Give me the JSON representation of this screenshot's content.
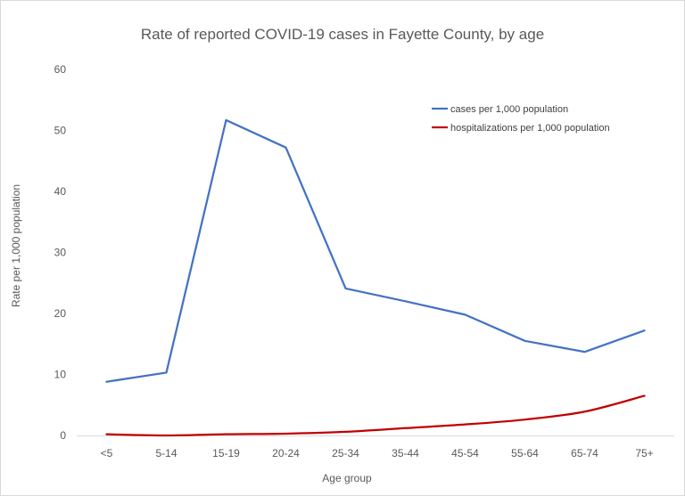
{
  "chart_data": {
    "type": "line",
    "title": "Rate of reported COVID-19 cases in Fayette County, by age",
    "xlabel": "Age group",
    "ylabel": "Rate per 1,000 population",
    "categories": [
      "<5",
      "5-14",
      "15-19",
      "20-24",
      "25-34",
      "35-44",
      "45-54",
      "55-64",
      "65-74",
      "75+"
    ],
    "ylim": [
      0,
      60
    ],
    "yticks": [
      "0",
      "10",
      "20",
      "30",
      "40",
      "50",
      "60"
    ],
    "grid": false,
    "legend_position": "top-right",
    "series": [
      {
        "name": "cases per 1,000 population",
        "color": "#4472c4",
        "values": [
          8.8,
          10.3,
          51.7,
          47.2,
          24.1,
          22.0,
          19.8,
          15.5,
          13.7,
          17.2
        ]
      },
      {
        "name": "hospitalizations per 1,000 population",
        "color": "#c00000",
        "values": [
          0.2,
          0.0,
          0.2,
          0.3,
          0.6,
          1.2,
          1.8,
          2.6,
          3.9,
          6.5
        ]
      }
    ]
  }
}
